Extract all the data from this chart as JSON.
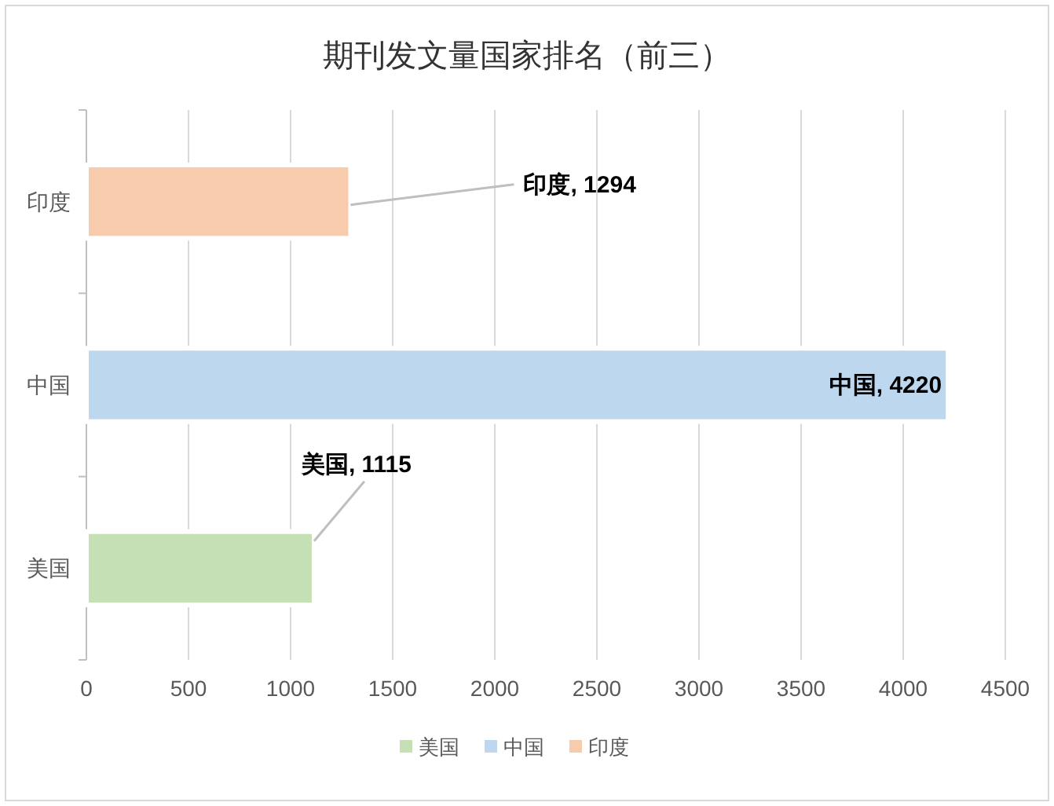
{
  "chart_data": {
    "type": "bar",
    "orientation": "horizontal",
    "title": "期刊发文量国家排名（前三）",
    "categories": [
      "印度",
      "中国",
      "美国"
    ],
    "series": [
      {
        "name": "美国",
        "color": "#c5e0b4",
        "values": [
          null,
          null,
          1115
        ],
        "value_labels": [
          null,
          null,
          "美国, 1115"
        ]
      },
      {
        "name": "中国",
        "color": "#bdd7ee",
        "values": [
          null,
          4220,
          null
        ],
        "value_labels": [
          null,
          "中国, 4220",
          null
        ]
      },
      {
        "name": "印度",
        "color": "#f8cbad",
        "values": [
          1294,
          null,
          null
        ],
        "value_labels": [
          "印度, 1294",
          null,
          null
        ]
      }
    ],
    "xlim": [
      0,
      4500
    ],
    "xticks": [
      0,
      500,
      1000,
      1500,
      2000,
      2500,
      3000,
      3500,
      4000,
      4500
    ],
    "grid": "x",
    "legend": "bottom"
  }
}
